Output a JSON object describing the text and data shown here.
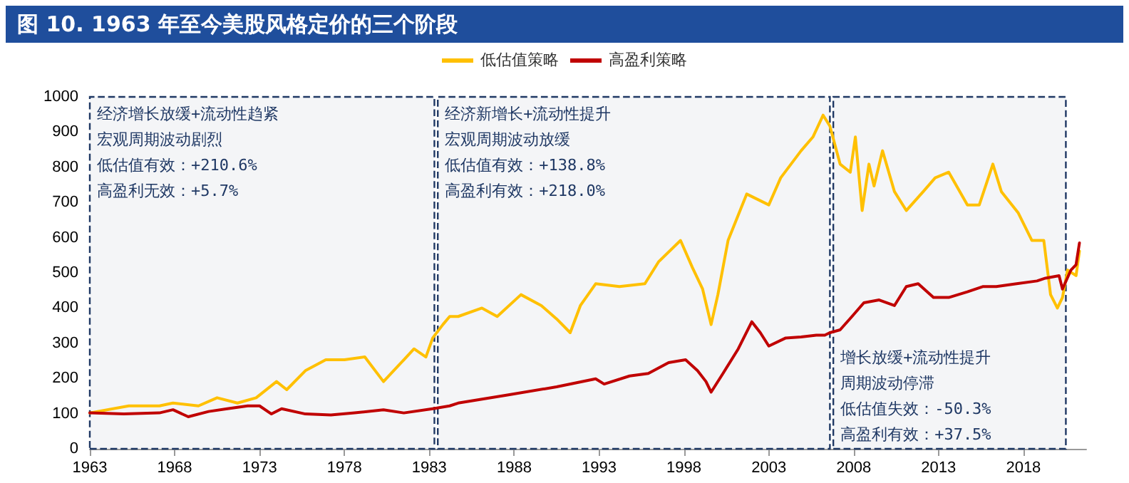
{
  "chart_data": {
    "type": "line",
    "title": "图 10. 1963 年至今美股风格定价的三个阶段",
    "xlim": [
      1963,
      2021.7
    ],
    "xticks": [
      1963,
      1968,
      1973,
      1978,
      1983,
      1988,
      1993,
      1998,
      2003,
      2008,
      2013,
      2018
    ],
    "ylim": [
      0,
      1000
    ],
    "yticks": [
      0,
      100,
      200,
      300,
      400,
      500,
      600,
      700,
      800,
      900,
      1000
    ],
    "grid": false,
    "legend": "top",
    "marker": "none",
    "line_style": "solid",
    "series": [
      {
        "name": "低估值策略",
        "color": "#ffc000",
        "x": [
          1963,
          1965.3,
          1967.1,
          1967.9,
          1969.4,
          1970.5,
          1971.7,
          1972.8,
          1974,
          1974.6,
          1975.7,
          1976.9,
          1978,
          1979.2,
          1980.3,
          1981.5,
          1982.1,
          1982.8,
          1983.2,
          1983.8,
          1984.2,
          1984.7,
          1986.1,
          1987,
          1988.4,
          1989.6,
          1990.5,
          1991.3,
          1991.9,
          1992.8,
          1994.2,
          1995.7,
          1996.5,
          1997.8,
          1998.5,
          1999.1,
          1999.6,
          2000,
          2000.6,
          2001.7,
          2003,
          2003.7,
          2004.9,
          2005.6,
          2006.2,
          2006.6,
          2007.2,
          2007.8,
          2008.1,
          2008.5,
          2008.9,
          2009.2,
          2009.7,
          2010.4,
          2011.1,
          2012.1,
          2012.8,
          2013.6,
          2014.7,
          2015.4,
          2016.2,
          2016.7,
          2017.7,
          2018.5,
          2019.2,
          2019.6,
          2020,
          2020.3,
          2020.6,
          2021.1,
          2021.3
        ],
        "values": [
          102,
          122,
          122,
          130,
          122,
          145,
          130,
          145,
          191,
          168,
          222,
          253,
          253,
          261,
          191,
          253,
          284,
          261,
          315,
          353,
          376,
          376,
          400,
          376,
          438,
          407,
          369,
          330,
          407,
          469,
          461,
          469,
          531,
          592,
          515,
          454,
          353,
          438,
          592,
          724,
          693,
          770,
          847,
          886,
          948,
          917,
          809,
          786,
          886,
          677,
          809,
          747,
          847,
          731,
          677,
          731,
          770,
          786,
          693,
          693,
          809,
          731,
          670,
          592,
          592,
          438,
          400,
          430,
          508,
          492,
          562
        ]
      },
      {
        "name": "高盈利策略",
        "color": "#c00000",
        "x": [
          1963,
          1965,
          1967.1,
          1967.9,
          1968.8,
          1970,
          1971.1,
          1972.3,
          1973,
          1973.7,
          1974.3,
          1975.7,
          1977.2,
          1978.6,
          1980.3,
          1981.5,
          1983.2,
          1984.2,
          1984.7,
          1987.6,
          1990.5,
          1992.8,
          1993.3,
          1994.8,
          1995.9,
          1997.1,
          1998.1,
          1998.8,
          1999.3,
          1999.6,
          2000.3,
          2001.2,
          2002,
          2002.5,
          2003,
          2004,
          2004.9,
          2005.8,
          2006.3,
          2006.6,
          2007.2,
          2007.9,
          2008.6,
          2009.5,
          2010.4,
          2011.1,
          2011.8,
          2012.7,
          2013.6,
          2014.7,
          2015.6,
          2016.4,
          2017.6,
          2018.8,
          2019.3,
          2020.1,
          2020.3,
          2020.8,
          2021.1,
          2021.3
        ],
        "values": [
          102,
          99,
          102,
          111,
          91,
          106,
          114,
          122,
          122,
          99,
          114,
          99,
          96,
          102,
          111,
          102,
          114,
          122,
          130,
          153,
          176,
          199,
          184,
          207,
          214,
          245,
          253,
          222,
          191,
          161,
          214,
          284,
          361,
          330,
          292,
          315,
          318,
          323,
          323,
          330,
          338,
          376,
          415,
          423,
          407,
          461,
          469,
          430,
          430,
          446,
          461,
          461,
          469,
          477,
          485,
          492,
          454,
          508,
          523,
          585
        ]
      }
    ],
    "bands": [
      {
        "axis": "x",
        "from": 1963,
        "to": 1983.3,
        "color": "#1f3864"
      },
      {
        "axis": "x",
        "from": 1983.5,
        "to": 2006.6,
        "color": "#1f3864"
      },
      {
        "axis": "x",
        "from": 2006.8,
        "to": 2020.5,
        "color": "#1f3864"
      }
    ],
    "annotations": [
      "经济增长放缓+流动性趋紧",
      "宏观周期波动剧烈",
      "低估值有效：+210.6%",
      "高盈利无效：+5.7%",
      "经济新增长+流动性提升",
      "宏观周期波动放缓",
      "低估值有效：+138.8%",
      "高盈利有效：+218.0%",
      "增长放缓+流动性提升",
      "周期波动停滞",
      "低估值失效：-50.3%",
      "高盈利有效：+37.5%"
    ]
  }
}
